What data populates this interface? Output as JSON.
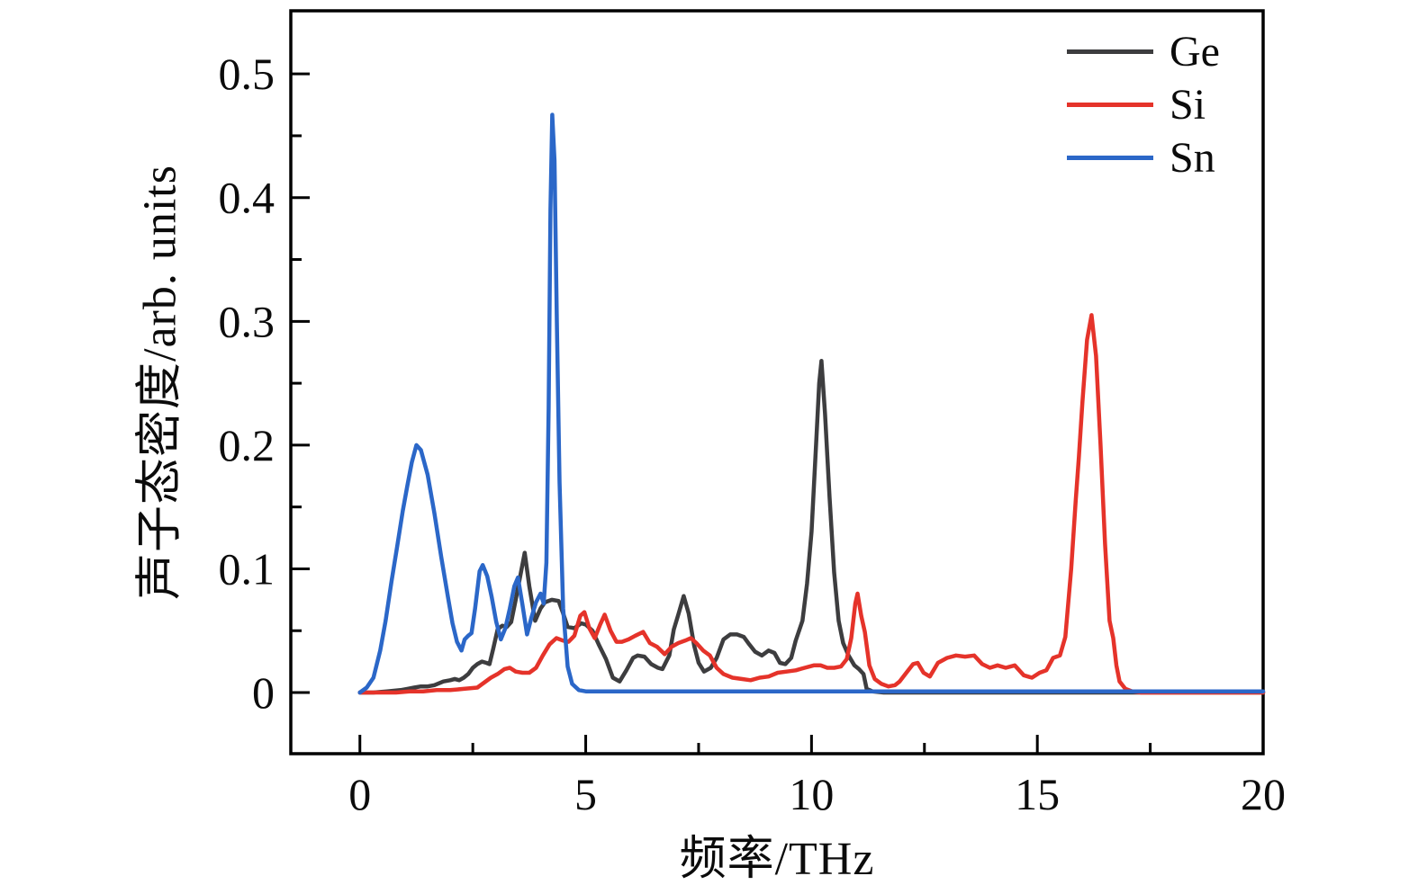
{
  "chart_data": {
    "type": "line",
    "title": "",
    "xlabel": "频率/THz",
    "ylabel": "声子态密度/arb. units",
    "xlim": [
      -1.53,
      20.0
    ],
    "ylim": [
      -0.0494,
      0.551
    ],
    "grid": false,
    "legend_position": "upper-right-inside",
    "x_major_ticks": [
      0,
      5,
      10,
      15,
      20
    ],
    "x_tick_labels": [
      "0",
      "5",
      "10",
      "15",
      "20"
    ],
    "x_minor_ticks": [
      2.5,
      7.5,
      12.5,
      17.5
    ],
    "y_major_ticks": [
      0,
      0.1,
      0.2,
      0.3,
      0.4,
      0.5
    ],
    "y_tick_labels": [
      "0",
      "0.1",
      "0.2",
      "0.3",
      "0.4",
      "0.5"
    ],
    "y_minor_ticks": [
      0.05,
      0.15,
      0.25,
      0.35,
      0.45
    ],
    "series": [
      {
        "name": "Ge",
        "color": "#3d3d3f",
        "points": [
          [
            0,
            0
          ],
          [
            0.3,
            0
          ],
          [
            0.6,
            0.001
          ],
          [
            0.9,
            0.002
          ],
          [
            1.05,
            0.003
          ],
          [
            1.2,
            0.004
          ],
          [
            1.35,
            0.005
          ],
          [
            1.5,
            0.005
          ],
          [
            1.65,
            0.006
          ],
          [
            1.85,
            0.009
          ],
          [
            2,
            0.01
          ],
          [
            2.1,
            0.011
          ],
          [
            2.2,
            0.01
          ],
          [
            2.3,
            0.012
          ],
          [
            2.4,
            0.015
          ],
          [
            2.5,
            0.02
          ],
          [
            2.6,
            0.023
          ],
          [
            2.7,
            0.025
          ],
          [
            2.8,
            0.024
          ],
          [
            2.87,
            0.023
          ],
          [
            2.95,
            0.035
          ],
          [
            3.05,
            0.051
          ],
          [
            3.15,
            0.054
          ],
          [
            3.25,
            0.053
          ],
          [
            3.35,
            0.057
          ],
          [
            3.45,
            0.075
          ],
          [
            3.55,
            0.094
          ],
          [
            3.65,
            0.113
          ],
          [
            3.75,
            0.086
          ],
          [
            3.88,
            0.058
          ],
          [
            4,
            0.068
          ],
          [
            4.1,
            0.073
          ],
          [
            4.25,
            0.075
          ],
          [
            4.4,
            0.074
          ],
          [
            4.5,
            0.064
          ],
          [
            4.6,
            0.053
          ],
          [
            4.75,
            0.052
          ],
          [
            4.9,
            0.056
          ],
          [
            5,
            0.055
          ],
          [
            5.15,
            0.05
          ],
          [
            5.3,
            0.038
          ],
          [
            5.45,
            0.027
          ],
          [
            5.6,
            0.012
          ],
          [
            5.75,
            0.009
          ],
          [
            5.9,
            0.018
          ],
          [
            6.05,
            0.028
          ],
          [
            6.15,
            0.03
          ],
          [
            6.3,
            0.029
          ],
          [
            6.45,
            0.023
          ],
          [
            6.6,
            0.02
          ],
          [
            6.7,
            0.019
          ],
          [
            6.85,
            0.03
          ],
          [
            6.95,
            0.051
          ],
          [
            7.05,
            0.063
          ],
          [
            7.17,
            0.078
          ],
          [
            7.28,
            0.064
          ],
          [
            7.4,
            0.038
          ],
          [
            7.5,
            0.024
          ],
          [
            7.62,
            0.017
          ],
          [
            7.77,
            0.02
          ],
          [
            7.9,
            0.028
          ],
          [
            8.05,
            0.043
          ],
          [
            8.2,
            0.047
          ],
          [
            8.35,
            0.047
          ],
          [
            8.5,
            0.045
          ],
          [
            8.62,
            0.039
          ],
          [
            8.75,
            0.033
          ],
          [
            8.9,
            0.03
          ],
          [
            9.05,
            0.034
          ],
          [
            9.18,
            0.032
          ],
          [
            9.3,
            0.024
          ],
          [
            9.42,
            0.023
          ],
          [
            9.55,
            0.028
          ],
          [
            9.65,
            0.042
          ],
          [
            9.8,
            0.058
          ],
          [
            9.9,
            0.088
          ],
          [
            10,
            0.13
          ],
          [
            10.1,
            0.2
          ],
          [
            10.17,
            0.25
          ],
          [
            10.22,
            0.268
          ],
          [
            10.3,
            0.225
          ],
          [
            10.4,
            0.158
          ],
          [
            10.5,
            0.097
          ],
          [
            10.6,
            0.058
          ],
          [
            10.7,
            0.04
          ],
          [
            10.82,
            0.03
          ],
          [
            10.95,
            0.022
          ],
          [
            11.05,
            0.019
          ],
          [
            11.15,
            0.015
          ],
          [
            11.22,
            0.003
          ],
          [
            11.35,
            0.001
          ],
          [
            11.6,
            0
          ],
          [
            12,
            0
          ],
          [
            13,
            0
          ],
          [
            14,
            0
          ],
          [
            15,
            0
          ],
          [
            16,
            0
          ],
          [
            17,
            0
          ],
          [
            18,
            0
          ],
          [
            19,
            0
          ],
          [
            20,
            0
          ]
        ]
      },
      {
        "name": "Si",
        "color": "#e5332a",
        "points": [
          [
            0,
            0
          ],
          [
            0.4,
            0
          ],
          [
            0.8,
            0
          ],
          [
            1.1,
            0.001
          ],
          [
            1.4,
            0.001
          ],
          [
            1.7,
            0.002
          ],
          [
            2,
            0.002
          ],
          [
            2.3,
            0.003
          ],
          [
            2.6,
            0.004
          ],
          [
            2.75,
            0.008
          ],
          [
            2.9,
            0.012
          ],
          [
            3.05,
            0.015
          ],
          [
            3.2,
            0.019
          ],
          [
            3.32,
            0.02
          ],
          [
            3.45,
            0.017
          ],
          [
            3.6,
            0.016
          ],
          [
            3.75,
            0.016
          ],
          [
            3.9,
            0.02
          ],
          [
            4.05,
            0.03
          ],
          [
            4.2,
            0.039
          ],
          [
            4.35,
            0.044
          ],
          [
            4.5,
            0.042
          ],
          [
            4.62,
            0.041
          ],
          [
            4.75,
            0.046
          ],
          [
            4.88,
            0.062
          ],
          [
            4.97,
            0.065
          ],
          [
            5.08,
            0.052
          ],
          [
            5.2,
            0.044
          ],
          [
            5.32,
            0.055
          ],
          [
            5.42,
            0.063
          ],
          [
            5.55,
            0.05
          ],
          [
            5.68,
            0.041
          ],
          [
            5.8,
            0.041
          ],
          [
            5.95,
            0.043
          ],
          [
            6.1,
            0.046
          ],
          [
            6.27,
            0.049
          ],
          [
            6.42,
            0.04
          ],
          [
            6.58,
            0.037
          ],
          [
            6.75,
            0.031
          ],
          [
            6.9,
            0.037
          ],
          [
            7.05,
            0.04
          ],
          [
            7.2,
            0.042
          ],
          [
            7.33,
            0.044
          ],
          [
            7.45,
            0.04
          ],
          [
            7.6,
            0.034
          ],
          [
            7.75,
            0.03
          ],
          [
            7.9,
            0.02
          ],
          [
            8.05,
            0.015
          ],
          [
            8.25,
            0.012
          ],
          [
            8.45,
            0.011
          ],
          [
            8.65,
            0.01
          ],
          [
            8.85,
            0.012
          ],
          [
            9.05,
            0.013
          ],
          [
            9.25,
            0.016
          ],
          [
            9.45,
            0.017
          ],
          [
            9.65,
            0.018
          ],
          [
            9.85,
            0.02
          ],
          [
            10.05,
            0.022
          ],
          [
            10.2,
            0.022
          ],
          [
            10.35,
            0.02
          ],
          [
            10.5,
            0.02
          ],
          [
            10.65,
            0.021
          ],
          [
            10.78,
            0.027
          ],
          [
            10.88,
            0.044
          ],
          [
            10.97,
            0.072
          ],
          [
            11.02,
            0.08
          ],
          [
            11.1,
            0.062
          ],
          [
            11.18,
            0.049
          ],
          [
            11.28,
            0.022
          ],
          [
            11.4,
            0.011
          ],
          [
            11.55,
            0.007
          ],
          [
            11.7,
            0.005
          ],
          [
            11.85,
            0.006
          ],
          [
            11.95,
            0.009
          ],
          [
            12.1,
            0.016
          ],
          [
            12.25,
            0.023
          ],
          [
            12.35,
            0.024
          ],
          [
            12.48,
            0.016
          ],
          [
            12.62,
            0.013
          ],
          [
            12.8,
            0.024
          ],
          [
            13,
            0.028
          ],
          [
            13.2,
            0.03
          ],
          [
            13.4,
            0.029
          ],
          [
            13.6,
            0.03
          ],
          [
            13.78,
            0.023
          ],
          [
            13.95,
            0.02
          ],
          [
            14.12,
            0.022
          ],
          [
            14.3,
            0.02
          ],
          [
            14.5,
            0.022
          ],
          [
            14.7,
            0.014
          ],
          [
            14.88,
            0.012
          ],
          [
            15.05,
            0.016
          ],
          [
            15.2,
            0.018
          ],
          [
            15.35,
            0.028
          ],
          [
            15.5,
            0.03
          ],
          [
            15.62,
            0.045
          ],
          [
            15.75,
            0.1
          ],
          [
            15.85,
            0.155
          ],
          [
            15.92,
            0.19
          ],
          [
            16,
            0.235
          ],
          [
            16.1,
            0.285
          ],
          [
            16.2,
            0.305
          ],
          [
            16.3,
            0.272
          ],
          [
            16.4,
            0.2
          ],
          [
            16.5,
            0.12
          ],
          [
            16.6,
            0.058
          ],
          [
            16.68,
            0.044
          ],
          [
            16.75,
            0.022
          ],
          [
            16.82,
            0.009
          ],
          [
            16.95,
            0.003
          ],
          [
            17.1,
            0.001
          ],
          [
            17.3,
            0
          ],
          [
            17.6,
            0
          ],
          [
            18,
            0
          ],
          [
            18.5,
            0
          ],
          [
            19,
            0
          ],
          [
            19.5,
            0
          ],
          [
            20,
            0
          ]
        ]
      },
      {
        "name": "Sn",
        "color": "#2b67c8",
        "points": [
          [
            0,
            0
          ],
          [
            0.15,
            0.004
          ],
          [
            0.3,
            0.012
          ],
          [
            0.45,
            0.034
          ],
          [
            0.57,
            0.058
          ],
          [
            0.7,
            0.09
          ],
          [
            0.82,
            0.117
          ],
          [
            0.95,
            0.147
          ],
          [
            1.05,
            0.167
          ],
          [
            1.15,
            0.186
          ],
          [
            1.25,
            0.2
          ],
          [
            1.35,
            0.196
          ],
          [
            1.5,
            0.176
          ],
          [
            1.65,
            0.145
          ],
          [
            1.8,
            0.11
          ],
          [
            1.95,
            0.077
          ],
          [
            2.05,
            0.056
          ],
          [
            2.15,
            0.041
          ],
          [
            2.25,
            0.034
          ],
          [
            2.32,
            0.043
          ],
          [
            2.4,
            0.046
          ],
          [
            2.47,
            0.048
          ],
          [
            2.55,
            0.068
          ],
          [
            2.65,
            0.098
          ],
          [
            2.72,
            0.103
          ],
          [
            2.82,
            0.094
          ],
          [
            2.92,
            0.077
          ],
          [
            3.02,
            0.057
          ],
          [
            3.12,
            0.043
          ],
          [
            3.22,
            0.052
          ],
          [
            3.32,
            0.068
          ],
          [
            3.42,
            0.086
          ],
          [
            3.5,
            0.093
          ],
          [
            3.6,
            0.071
          ],
          [
            3.7,
            0.047
          ],
          [
            3.8,
            0.061
          ],
          [
            3.9,
            0.073
          ],
          [
            4,
            0.08
          ],
          [
            4.07,
            0.072
          ],
          [
            4.13,
            0.105
          ],
          [
            4.18,
            0.23
          ],
          [
            4.22,
            0.39
          ],
          [
            4.26,
            0.467
          ],
          [
            4.31,
            0.43
          ],
          [
            4.36,
            0.3
          ],
          [
            4.42,
            0.17
          ],
          [
            4.5,
            0.068
          ],
          [
            4.6,
            0.021
          ],
          [
            4.7,
            0.007
          ],
          [
            4.85,
            0.002
          ],
          [
            5,
            0.001
          ],
          [
            5.5,
            0.001
          ],
          [
            6,
            0.001
          ],
          [
            7,
            0.001
          ],
          [
            8,
            0.001
          ],
          [
            9,
            0.001
          ],
          [
            10,
            0.001
          ],
          [
            11,
            0.001
          ],
          [
            12,
            0.001
          ],
          [
            13,
            0.001
          ],
          [
            14,
            0.001
          ],
          [
            15,
            0.001
          ],
          [
            16,
            0.001
          ],
          [
            17,
            0.001
          ],
          [
            18,
            0.001
          ],
          [
            19,
            0.001
          ],
          [
            20,
            0.001
          ]
        ]
      }
    ]
  }
}
